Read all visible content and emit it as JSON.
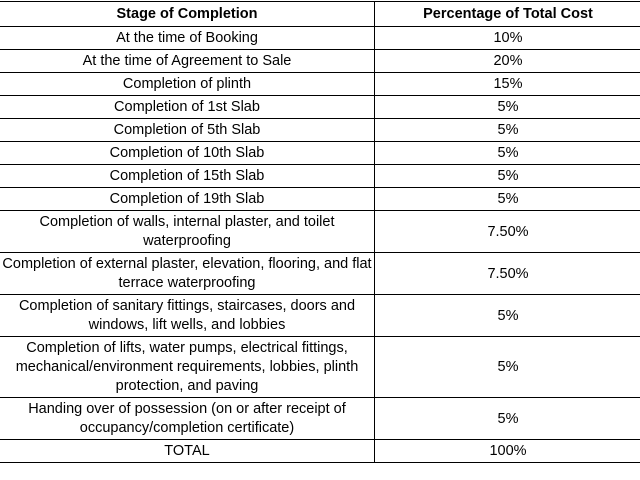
{
  "table": {
    "headers": {
      "stage": "Stage of Completion",
      "percentage": "Percentage of Total Cost"
    },
    "rows": [
      {
        "stage": "At the time of Booking",
        "percentage": "10%"
      },
      {
        "stage": "At the time of Agreement to Sale",
        "percentage": "20%"
      },
      {
        "stage": "Completion of plinth",
        "percentage": "15%"
      },
      {
        "stage": "Completion of 1st Slab",
        "percentage": "5%"
      },
      {
        "stage": "Completion of 5th Slab",
        "percentage": "5%"
      },
      {
        "stage": "Completion of 10th Slab",
        "percentage": "5%"
      },
      {
        "stage": "Completion of 15th Slab",
        "percentage": "5%"
      },
      {
        "stage": "Completion of 19th Slab",
        "percentage": "5%"
      },
      {
        "stage": "Completion of walls, internal plaster, and toilet waterproofing",
        "percentage": "7.50%"
      },
      {
        "stage": "Completion of external plaster, elevation, flooring, and flat terrace waterproofing",
        "percentage": "7.50%"
      },
      {
        "stage": "Completion of sanitary fittings, staircases, doors and windows, lift wells, and lobbies",
        "percentage": "5%"
      },
      {
        "stage": "Completion of lifts, water pumps, electrical fittings, mechanical/environment requirements, lobbies, plinth protection, and paving",
        "percentage": "5%"
      },
      {
        "stage": "Handing over of possession (on or after receipt of occupancy/completion certificate)",
        "percentage": "5%"
      },
      {
        "stage": "TOTAL",
        "percentage": "100%"
      }
    ]
  }
}
